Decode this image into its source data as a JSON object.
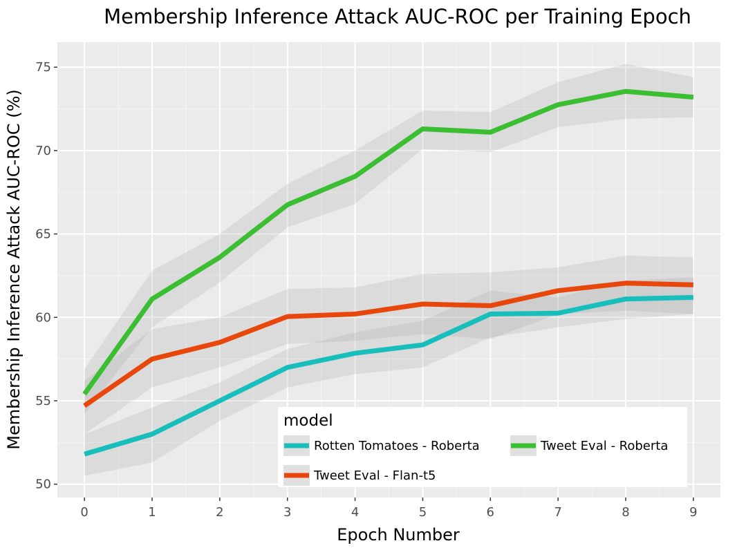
{
  "chart_data": {
    "type": "line",
    "title": "Membership Inference Attack AUC-ROC per Training Epoch",
    "xlabel": "Epoch Number",
    "ylabel": "Membership Inference Attack AUC-ROC (%)",
    "x": [
      0,
      1,
      2,
      3,
      4,
      5,
      6,
      7,
      8,
      9
    ],
    "xlim": [
      -0.4,
      9.4
    ],
    "ylim": [
      49.2,
      76.5
    ],
    "x_ticks": [
      0,
      1,
      2,
      3,
      4,
      5,
      6,
      7,
      8,
      9
    ],
    "y_ticks": [
      50,
      55,
      60,
      65,
      70,
      75
    ],
    "grid": true,
    "legend": {
      "title": "model",
      "position": "bottom-right inside"
    },
    "series": [
      {
        "name": "Rotten Tomatoes - Roberta",
        "color": "#17BEBB",
        "values": [
          51.8,
          53.0,
          55.0,
          57.0,
          57.85,
          58.35,
          60.2,
          60.25,
          61.1,
          61.2
        ],
        "ci_lower": [
          50.5,
          51.3,
          53.8,
          55.8,
          56.6,
          57.0,
          58.8,
          59.4,
          59.9,
          60.2
        ],
        "ci_upper": [
          53.0,
          54.6,
          56.1,
          58.1,
          59.1,
          59.8,
          61.6,
          61.2,
          62.2,
          62.4
        ]
      },
      {
        "name": "Tweet Eval - Roberta",
        "color": "#3BBE32",
        "values": [
          55.4,
          61.1,
          63.6,
          66.75,
          68.45,
          71.3,
          71.1,
          72.75,
          73.55,
          73.2
        ],
        "ci_lower": [
          54.2,
          59.4,
          62.1,
          65.4,
          66.8,
          70.1,
          69.9,
          71.4,
          71.9,
          72.0
        ],
        "ci_upper": [
          56.9,
          62.8,
          65.0,
          68.0,
          70.0,
          72.4,
          72.3,
          74.1,
          75.2,
          74.4
        ]
      },
      {
        "name": "Tweet Eval - Flan-t5",
        "color": "#E8470C",
        "values": [
          54.7,
          57.5,
          58.5,
          60.05,
          60.2,
          60.8,
          60.7,
          61.6,
          62.05,
          61.95
        ],
        "ci_lower": [
          53.0,
          55.8,
          57.0,
          58.4,
          58.6,
          59.0,
          58.7,
          60.2,
          60.4,
          60.2
        ],
        "ci_upper": [
          56.2,
          59.3,
          60.0,
          61.7,
          61.8,
          62.6,
          62.7,
          63.0,
          63.7,
          63.6
        ]
      }
    ]
  }
}
